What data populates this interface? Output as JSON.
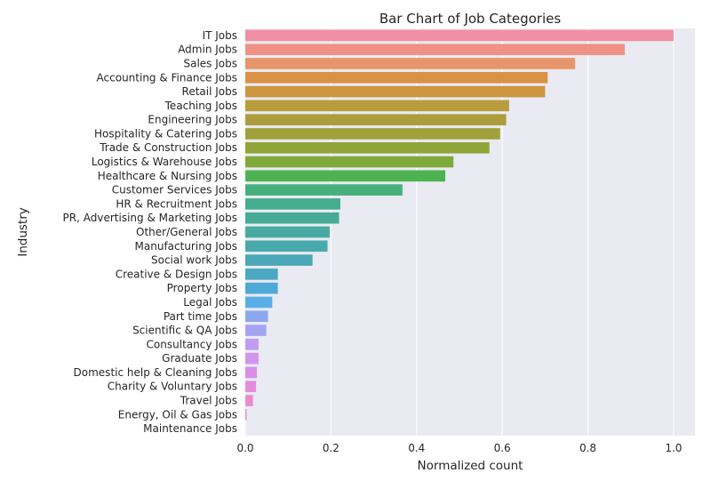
{
  "chart_data": {
    "type": "bar",
    "orientation": "horizontal",
    "title": "Bar Chart of Job Categories",
    "xlabel": "Normalized count",
    "ylabel": "Industry",
    "xlim": [
      0,
      1.05
    ],
    "xticks": [
      "0.0",
      "0.2",
      "0.4",
      "0.6",
      "0.8",
      "1.0"
    ],
    "grid": true,
    "background": "#eaeaf2",
    "categories": [
      "IT Jobs",
      "Admin Jobs",
      "Sales Jobs",
      "Accounting & Finance Jobs",
      "Retail Jobs",
      "Teaching Jobs",
      "Engineering Jobs",
      "Hospitality & Catering Jobs",
      "Trade & Construction Jobs",
      "Logistics & Warehouse Jobs",
      "Healthcare & Nursing Jobs",
      "Customer Services Jobs",
      "HR & Recruitment Jobs",
      "PR, Advertising & Marketing Jobs",
      "Other/General Jobs",
      "Manufacturing Jobs",
      "Social work Jobs",
      "Creative & Design Jobs",
      "Property Jobs",
      "Legal Jobs",
      "Part time Jobs",
      "Scientific & QA Jobs",
      "Consultancy Jobs",
      "Graduate Jobs",
      "Domestic help & Cleaning Jobs",
      "Charity & Voluntary Jobs",
      "Travel Jobs",
      "Energy, Oil & Gas Jobs",
      "Maintenance Jobs"
    ],
    "values": [
      1.0,
      0.886,
      0.77,
      0.706,
      0.7,
      0.616,
      0.609,
      0.595,
      0.57,
      0.486,
      0.467,
      0.367,
      0.222,
      0.219,
      0.197,
      0.192,
      0.157,
      0.076,
      0.076,
      0.063,
      0.053,
      0.049,
      0.031,
      0.031,
      0.027,
      0.025,
      0.018,
      0.003,
      0.0
    ],
    "colors": [
      "#f08fa3",
      "#ef9185",
      "#e8956b",
      "#d99243",
      "#cc9640",
      "#b99c3c",
      "#ab9d3b",
      "#a2a03a",
      "#91a43a",
      "#80a93b",
      "#4cb350",
      "#46b07c",
      "#46ad8e",
      "#46ab97",
      "#47aba1",
      "#49aaad",
      "#4aa8b8",
      "#4aa8c4",
      "#4fa9d6",
      "#5aaee8",
      "#8ba8ee",
      "#a5a4f2",
      "#bf9cf2",
      "#d196f0",
      "#dc8de9",
      "#e48ddd",
      "#eb8bd0",
      "#ef8abf",
      "#f08cb0"
    ]
  }
}
